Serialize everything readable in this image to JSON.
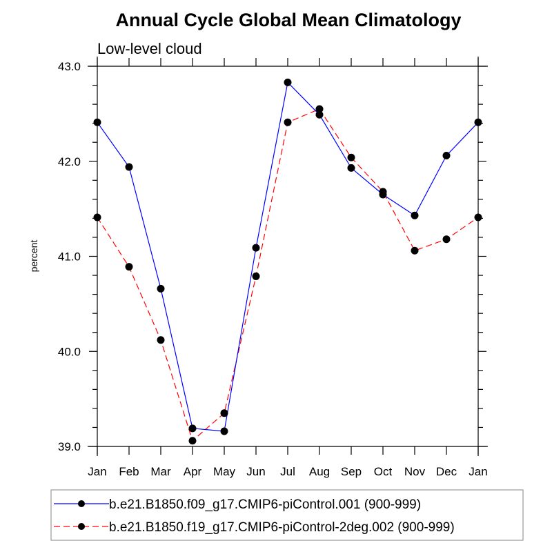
{
  "chart_data": {
    "type": "line",
    "title": "Annual Cycle Global Mean Climatology",
    "subtitle": "Low-level cloud",
    "xlabel": "",
    "ylabel": "percent",
    "categories": [
      "Jan",
      "Feb",
      "Mar",
      "Apr",
      "May",
      "Jun",
      "Jul",
      "Aug",
      "Sep",
      "Oct",
      "Nov",
      "Dec",
      "Jan"
    ],
    "ylim": [
      39.0,
      43.0
    ],
    "yticks": [
      39.0,
      40.0,
      41.0,
      42.0,
      43.0
    ],
    "ytick_labels": [
      "39.0",
      "40.0",
      "41.0",
      "42.0",
      "43.0"
    ],
    "yminor_step": 0.2,
    "grid": false,
    "legend_position": "bottom",
    "series": [
      {
        "name": "b.e21.B1850.f09_g17.CMIP6-piControl.001 (900-999)",
        "color": "#0000ff",
        "line_style": "solid",
        "marker": "filled-circle",
        "values": [
          42.41,
          41.94,
          40.66,
          39.19,
          39.16,
          41.09,
          42.83,
          42.49,
          41.93,
          41.65,
          41.43,
          42.06,
          42.41
        ]
      },
      {
        "name": "b.e21.B1850.f19_g17.CMIP6-piControl-2deg.002 (900-999)",
        "color": "#ff0000",
        "line_style": "dashed",
        "marker": "filled-circle",
        "values": [
          41.41,
          40.89,
          40.12,
          39.06,
          39.35,
          40.79,
          42.41,
          42.55,
          42.04,
          41.68,
          41.06,
          41.18,
          41.41
        ]
      }
    ]
  }
}
